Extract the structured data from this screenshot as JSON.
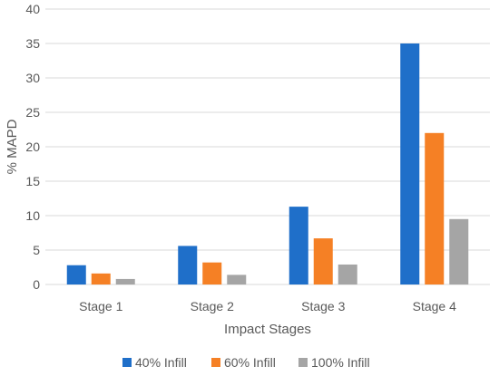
{
  "chart_data": {
    "type": "bar",
    "title": "",
    "xlabel": "Impact Stages",
    "ylabel": "% MAPD",
    "ylim": [
      0,
      40
    ],
    "yticks": [
      0,
      5,
      10,
      15,
      20,
      25,
      30,
      35,
      40
    ],
    "grid": true,
    "legend_position": "bottom",
    "categories": [
      "Stage 1",
      "Stage 2",
      "Stage 3",
      "Stage 4"
    ],
    "series": [
      {
        "name": "40% Infill",
        "color": "#1f6fc9",
        "values": [
          2.8,
          5.6,
          11.3,
          35.0
        ]
      },
      {
        "name": "60% Infill",
        "color": "#f58025",
        "values": [
          1.6,
          3.2,
          6.7,
          22.0
        ]
      },
      {
        "name": "100% Infill",
        "color": "#a5a5a5",
        "values": [
          0.8,
          1.4,
          2.9,
          9.5
        ]
      }
    ]
  }
}
